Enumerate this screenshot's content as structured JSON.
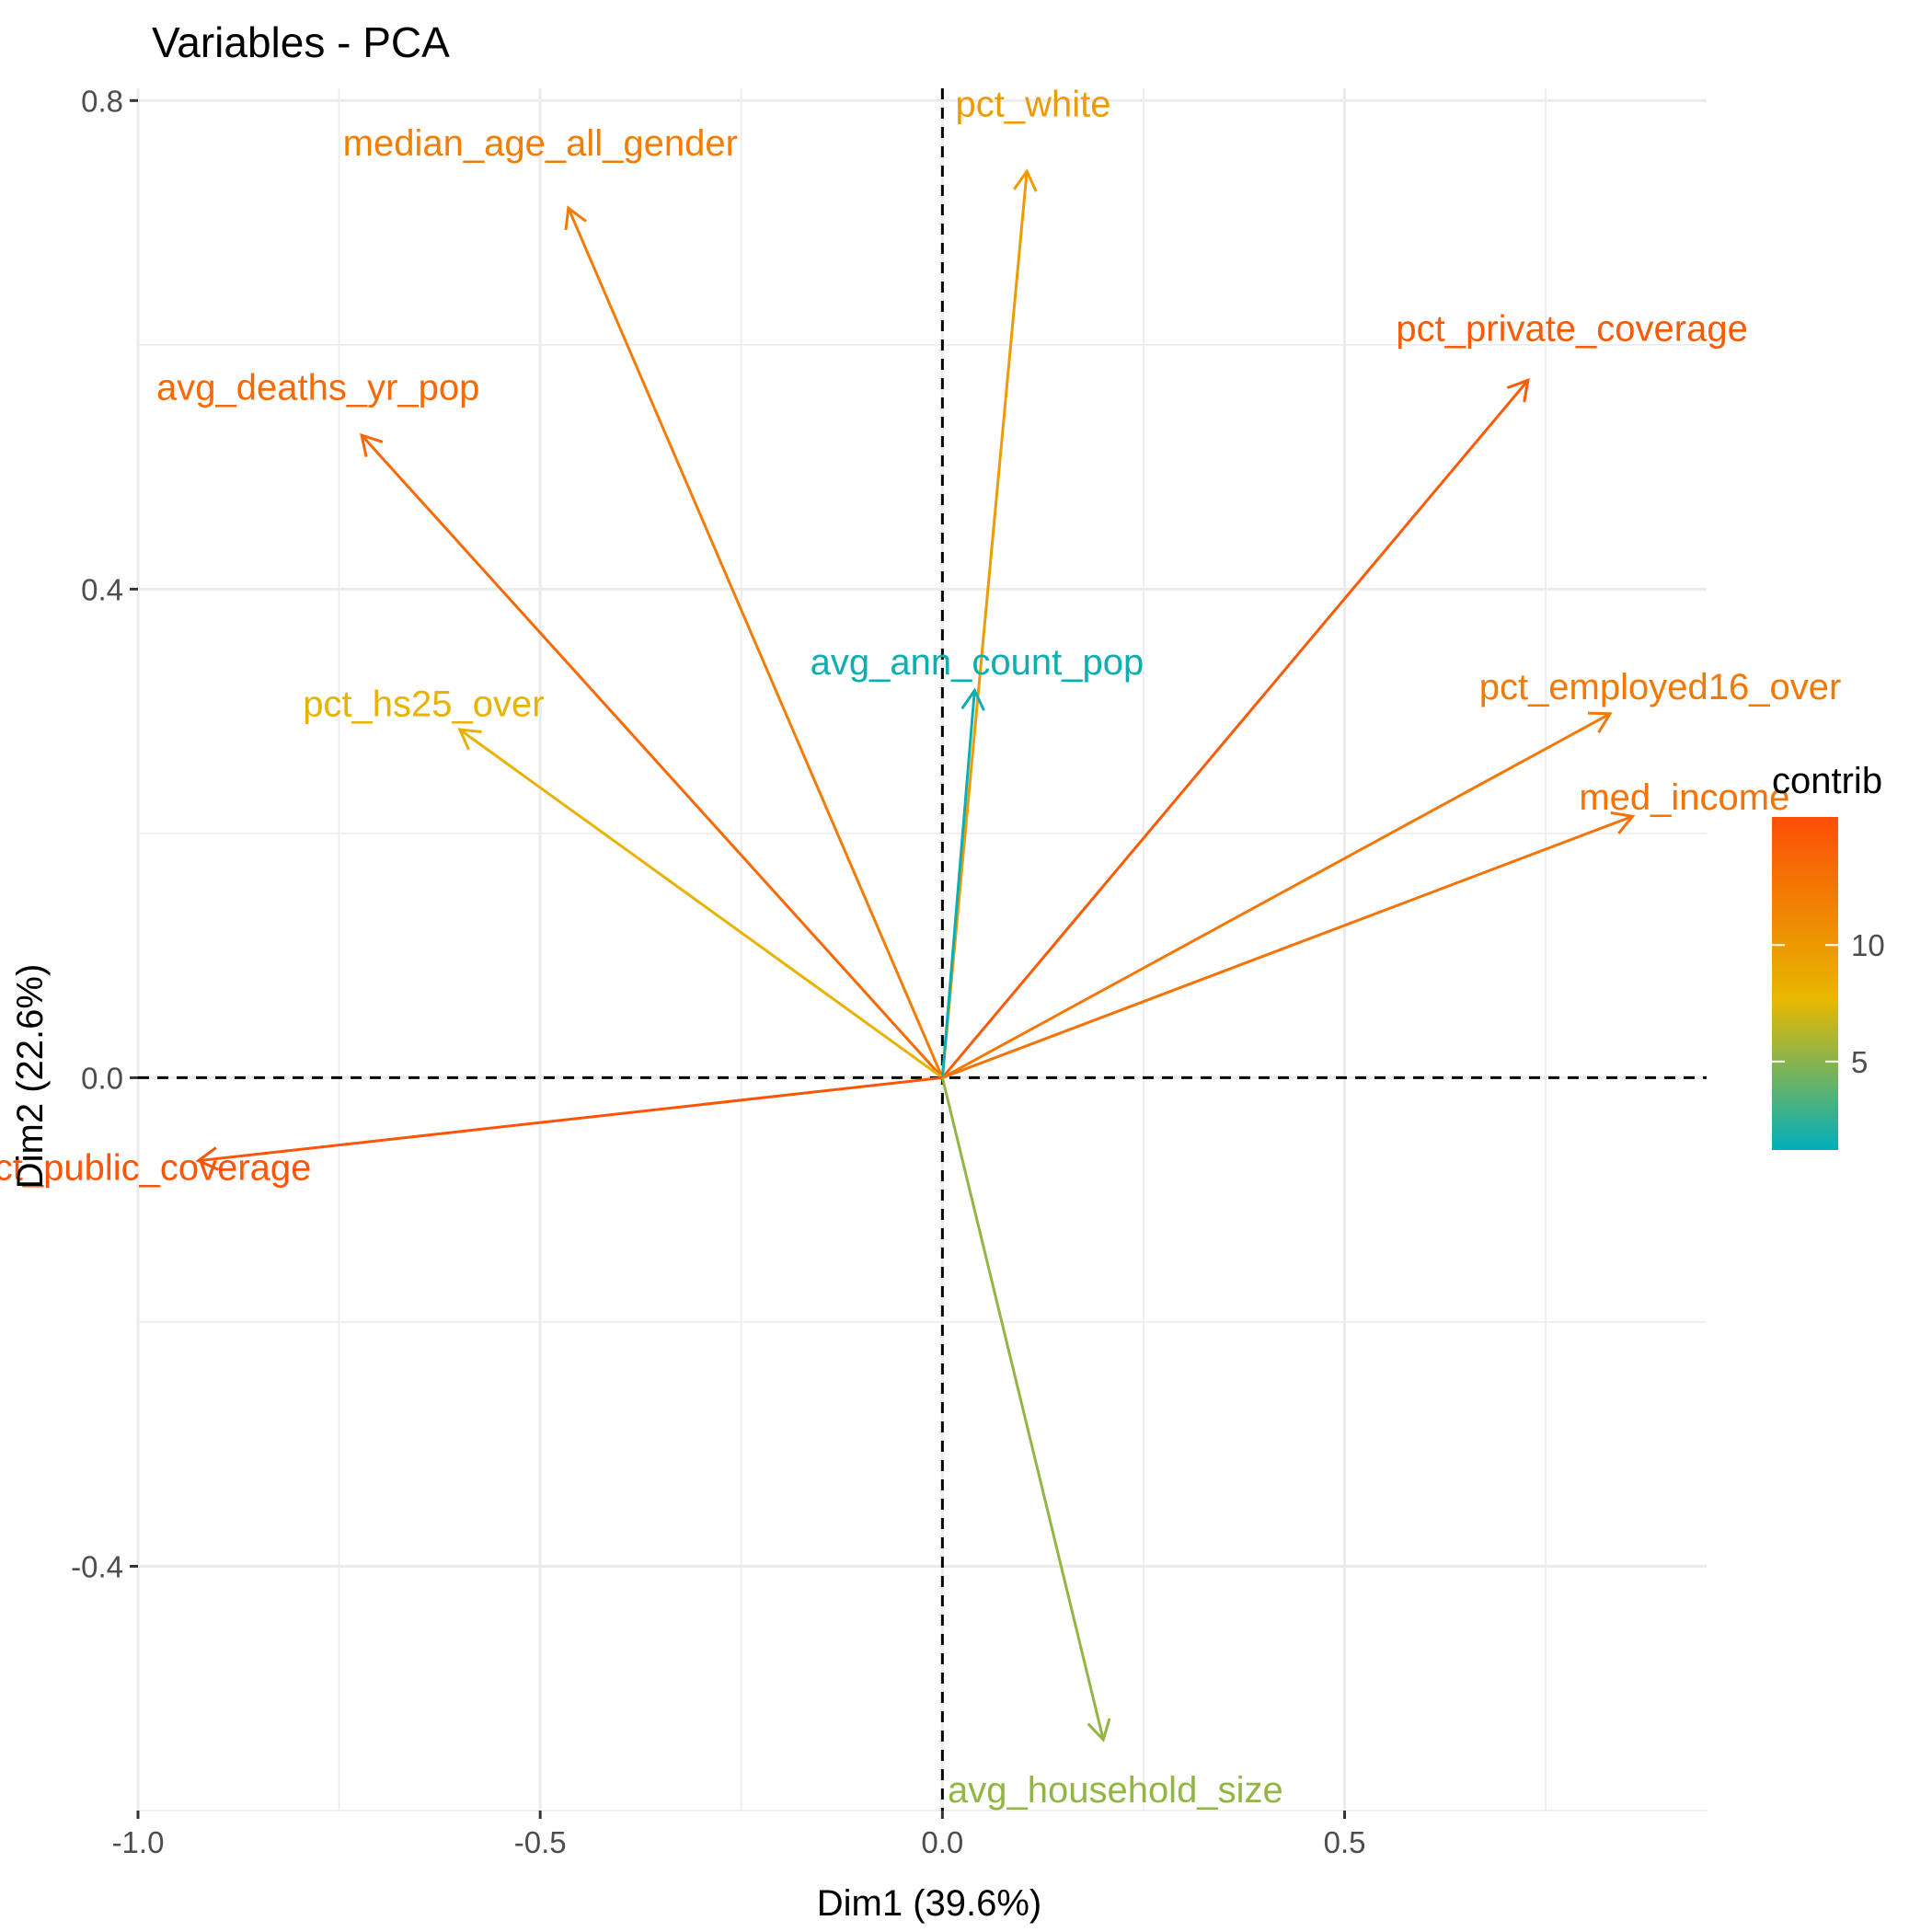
{
  "chart_data": {
    "type": "pca-variables",
    "title": "Variables - PCA",
    "xlabel": "Dim1 (39.6%)",
    "ylabel": "Dim2 (22.6%)",
    "xlim": [
      -1.0,
      0.95
    ],
    "ylim": [
      -0.6,
      0.81
    ],
    "xticks": [
      -1.0,
      -0.5,
      0.0,
      0.5
    ],
    "xtick_labels": [
      "-1.0",
      "-0.5",
      "0.0",
      "0.5"
    ],
    "yticks": [
      -0.4,
      0.0,
      0.4,
      0.8
    ],
    "ytick_labels": [
      "-0.4",
      "0.0",
      "0.4",
      "0.8"
    ],
    "grid": true,
    "reference_lines": "dashed at x=0 and y=0",
    "variables": [
      {
        "label": "median_age_all_gender",
        "x": -0.465,
        "y": 0.712,
        "contrib": 12.0
      },
      {
        "label": "pct_white",
        "x": 0.105,
        "y": 0.742,
        "contrib": 9.8
      },
      {
        "label": "avg_deaths_yr_pop",
        "x": -0.722,
        "y": 0.526,
        "contrib": 13.5
      },
      {
        "label": "pct_private_coverage",
        "x": 0.728,
        "y": 0.571,
        "contrib": 14.5
      },
      {
        "label": "avg_ann_count_pop",
        "x": 0.04,
        "y": 0.317,
        "contrib": 1.5
      },
      {
        "label": "pct_hs25_over",
        "x": -0.6,
        "y": 0.285,
        "contrib": 8.0
      },
      {
        "label": "pct_employed16_over",
        "x": 0.83,
        "y": 0.298,
        "contrib": 12.3
      },
      {
        "label": "med_income",
        "x": 0.858,
        "y": 0.214,
        "contrib": 12.8
      },
      {
        "label": "pct_public_coverage",
        "x": -0.925,
        "y": -0.068,
        "contrib": 15.0
      },
      {
        "label": "avg_household_size",
        "x": 0.2,
        "y": -0.542,
        "contrib": 5.3
      }
    ],
    "legend": {
      "title": "contrib",
      "position": "right",
      "ticks": [
        5,
        10
      ],
      "range": [
        1.2,
        15.5
      ]
    },
    "colors": {
      "low": "#00AFBB",
      "mid": "#E7B800",
      "high": "#FC4E07",
      "grid": "#ebebeb",
      "reference": "#000000"
    }
  }
}
